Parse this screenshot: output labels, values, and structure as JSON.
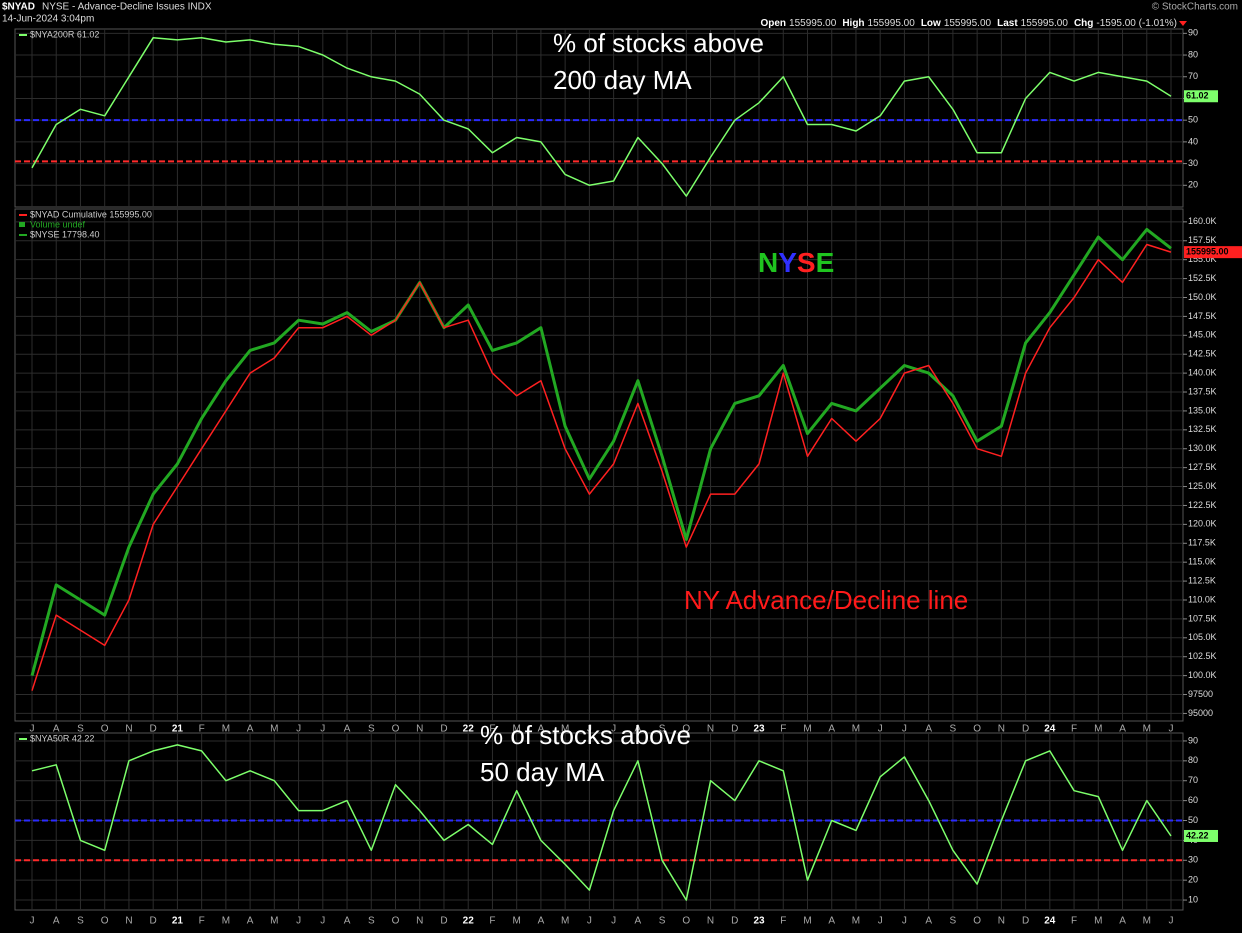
{
  "header": {
    "symbol": "$NYAD",
    "description": "NYSE - Advance-Decline Issues INDX",
    "timestamp": "14-Jun-2024 3:04pm",
    "source": "© StockCharts.com",
    "quote": [
      {
        "label": "Open",
        "value": "155995.00"
      },
      {
        "label": "High",
        "value": "155995.00"
      },
      {
        "label": "Low",
        "value": "155995.00"
      },
      {
        "label": "Last",
        "value": "155995.00"
      },
      {
        "label": "Chg",
        "value": "-1595.00 (-1.01%)"
      }
    ]
  },
  "chart_data": [
    {
      "type": "line",
      "annotation": [
        "% of stocks above",
        "200 day MA"
      ],
      "series": [
        {
          "name": "$NYA200R 61.02",
          "color": "#7dff6b",
          "values": [
            28,
            48,
            55,
            52,
            70,
            88,
            87,
            88,
            86,
            87,
            85,
            84,
            80,
            74,
            70,
            68,
            62,
            50,
            46,
            35,
            42,
            40,
            25,
            20,
            22,
            42,
            30,
            15,
            33,
            50,
            58,
            70,
            48,
            48,
            45,
            52,
            68,
            70,
            55,
            35,
            35,
            60,
            72,
            68,
            72,
            70,
            68,
            61.02
          ]
        }
      ],
      "hlines": [
        {
          "value": 50,
          "color": "#2b2bff"
        },
        {
          "value": 31,
          "color": "#ff2a2a"
        }
      ],
      "ylim": [
        10,
        92
      ],
      "yticks": [
        20,
        30,
        40,
        50,
        60,
        70,
        80,
        90
      ],
      "grid": true
    },
    {
      "type": "line",
      "annotation": "NY Advance/Decline line",
      "annotation_color": "#ff1a1a",
      "nyse_label": [
        {
          "text": "N",
          "color": "#1fc41f"
        },
        {
          "text": "Y",
          "color": "#3030ff"
        },
        {
          "text": "S",
          "color": "#ff2020"
        },
        {
          "text": "E",
          "color": "#1fc41f"
        }
      ],
      "volume_label": "Volume undef",
      "last_label": "155995.00",
      "categories": [
        "J",
        "A",
        "S",
        "O",
        "N",
        "D",
        "21",
        "F",
        "M",
        "A",
        "M",
        "J",
        "J",
        "A",
        "S",
        "O",
        "N",
        "D",
        "22",
        "F",
        "M",
        "A",
        "M",
        "J",
        "J",
        "A",
        "S",
        "O",
        "N",
        "D",
        "23",
        "F",
        "M",
        "A",
        "M",
        "J",
        "J",
        "A",
        "S",
        "O",
        "N",
        "D",
        "24",
        "F",
        "M",
        "A",
        "M",
        "J"
      ],
      "series": [
        {
          "name": "$NYAD Cumulative 155995.00",
          "color": "#ff2020",
          "values": [
            98000,
            108000,
            106000,
            104000,
            110000,
            120000,
            125000,
            130000,
            135000,
            140000,
            142000,
            146000,
            146000,
            147500,
            145000,
            147000,
            152000,
            146000,
            147000,
            140000,
            137000,
            139000,
            130000,
            124000,
            128000,
            136000,
            127000,
            117000,
            124000,
            124000,
            128000,
            140000,
            129000,
            134000,
            131000,
            134000,
            140000,
            141000,
            136000,
            130000,
            129000,
            140000,
            146000,
            150000,
            155000,
            152000,
            157000,
            155995
          ]
        },
        {
          "name": "$NYSE 17798.40",
          "color": "#22a822",
          "values": [
            100000,
            112000,
            110000,
            108000,
            117000,
            124000,
            128000,
            134000,
            139000,
            143000,
            144000,
            147000,
            146500,
            148000,
            145500,
            147000,
            152000,
            146000,
            149000,
            143000,
            144000,
            146000,
            133000,
            126000,
            131000,
            139000,
            129000,
            118000,
            130000,
            136000,
            137000,
            141000,
            132000,
            136000,
            135000,
            138000,
            141000,
            140000,
            137000,
            131000,
            133000,
            144000,
            148000,
            153000,
            158000,
            155000,
            159000,
            156500
          ]
        }
      ],
      "ylim": [
        94000,
        161700
      ],
      "yticks": [
        95000,
        97500,
        {
          "value": 100000,
          "label": "100.0K"
        },
        {
          "value": 102500,
          "label": "102.5K"
        },
        {
          "value": 105000,
          "label": "105.0K"
        },
        {
          "value": 107500,
          "label": "107.5K"
        },
        {
          "value": 110000,
          "label": "110.0K"
        },
        {
          "value": 112500,
          "label": "112.5K"
        },
        {
          "value": 115000,
          "label": "115.0K"
        },
        {
          "value": 117500,
          "label": "117.5K"
        },
        {
          "value": 120000,
          "label": "120.0K"
        },
        {
          "value": 122500,
          "label": "122.5K"
        },
        {
          "value": 125000,
          "label": "125.0K"
        },
        {
          "value": 127500,
          "label": "127.5K"
        },
        {
          "value": 130000,
          "label": "130.0K"
        },
        {
          "value": 132500,
          "label": "132.5K"
        },
        {
          "value": 135000,
          "label": "135.0K"
        },
        {
          "value": 137500,
          "label": "137.5K"
        },
        {
          "value": 140000,
          "label": "140.0K"
        },
        {
          "value": 142500,
          "label": "142.5K"
        },
        {
          "value": 145000,
          "label": "145.0K"
        },
        {
          "value": 147500,
          "label": "147.5K"
        },
        {
          "value": 150000,
          "label": "150.0K"
        },
        {
          "value": 152500,
          "label": "152.5K"
        },
        {
          "value": 155000,
          "label": "155.0K"
        },
        {
          "value": 157500,
          "label": "157.5K"
        },
        {
          "value": 160000,
          "label": "160.0K"
        }
      ],
      "grid": true
    },
    {
      "type": "line",
      "annotation": [
        "% of stocks above",
        "50 day MA"
      ],
      "categories": [
        "J",
        "A",
        "S",
        "O",
        "N",
        "D",
        "21",
        "F",
        "M",
        "A",
        "M",
        "J",
        "J",
        "A",
        "S",
        "O",
        "N",
        "D",
        "22",
        "F",
        "M",
        "A",
        "M",
        "J",
        "J",
        "A",
        "S",
        "O",
        "N",
        "D",
        "23",
        "F",
        "M",
        "A",
        "M",
        "J",
        "J",
        "A",
        "S",
        "O",
        "N",
        "D",
        "24",
        "F",
        "M",
        "A",
        "M",
        "J"
      ],
      "series": [
        {
          "name": "$NYA50R 42.22",
          "color": "#7dff6b",
          "values": [
            75,
            78,
            40,
            35,
            80,
            85,
            88,
            85,
            70,
            75,
            70,
            55,
            55,
            60,
            35,
            68,
            55,
            40,
            48,
            38,
            65,
            40,
            28,
            15,
            55,
            80,
            30,
            10,
            70,
            60,
            80,
            75,
            20,
            50,
            45,
            72,
            82,
            60,
            35,
            18,
            50,
            80,
            85,
            65,
            62,
            35,
            60,
            42.22
          ]
        }
      ],
      "hlines": [
        {
          "value": 50,
          "color": "#2b2bff"
        },
        {
          "value": 30,
          "color": "#ff2a2a"
        }
      ],
      "ylim": [
        5,
        94
      ],
      "yticks": [
        10,
        20,
        30,
        40,
        50,
        60,
        70,
        80,
        90
      ],
      "grid": true
    }
  ]
}
